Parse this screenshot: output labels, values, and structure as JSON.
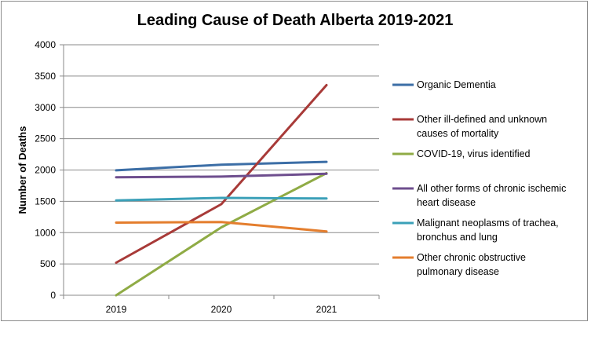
{
  "chart_data": {
    "type": "line",
    "title": "Leading Cause of Death Alberta 2019-2021",
    "xlabel": "",
    "ylabel": "Number of Deaths",
    "categories": [
      "2019",
      "2020",
      "2021"
    ],
    "ylim": [
      0,
      4000
    ],
    "yticks": [
      0,
      500,
      1000,
      1500,
      2000,
      2500,
      3000,
      3500,
      4000
    ],
    "grid": "horizontal",
    "legend_position": "right",
    "series": [
      {
        "name": "Organic Dementia",
        "legend_lines": [
          "Organic Dementia"
        ],
        "color": "#3c6ea6",
        "values": [
          1995,
          2085,
          2130
        ]
      },
      {
        "name": "Other ill-defined and unknown causes of mortality",
        "legend_lines": [
          "Other ill-defined and unknown",
          "causes of mortality"
        ],
        "color": "#a83a38",
        "values": [
          520,
          1455,
          3355
        ]
      },
      {
        "name": "COVID-19, virus identified",
        "legend_lines": [
          "COVID-19, virus identified"
        ],
        "color": "#8fab45",
        "values": [
          0,
          1085,
          1950
        ]
      },
      {
        "name": "All other forms of chronic ischemic heart disease",
        "legend_lines": [
          "All other forms of chronic ischemic",
          "heart disease"
        ],
        "color": "#6e4e8e",
        "values": [
          1885,
          1895,
          1940
        ]
      },
      {
        "name": "Malignant neoplasms of trachea, bronchus and lung",
        "legend_lines": [
          "Malignant neoplasms of trachea,",
          "bronchus and lung"
        ],
        "color": "#3ba0b8",
        "values": [
          1515,
          1555,
          1545
        ]
      },
      {
        "name": "Other chronic obstructive pulmonary disease",
        "legend_lines": [
          "Other chronic obstructive",
          "pulmonary disease"
        ],
        "color": "#e47e2e",
        "values": [
          1160,
          1170,
          1020
        ]
      }
    ]
  }
}
